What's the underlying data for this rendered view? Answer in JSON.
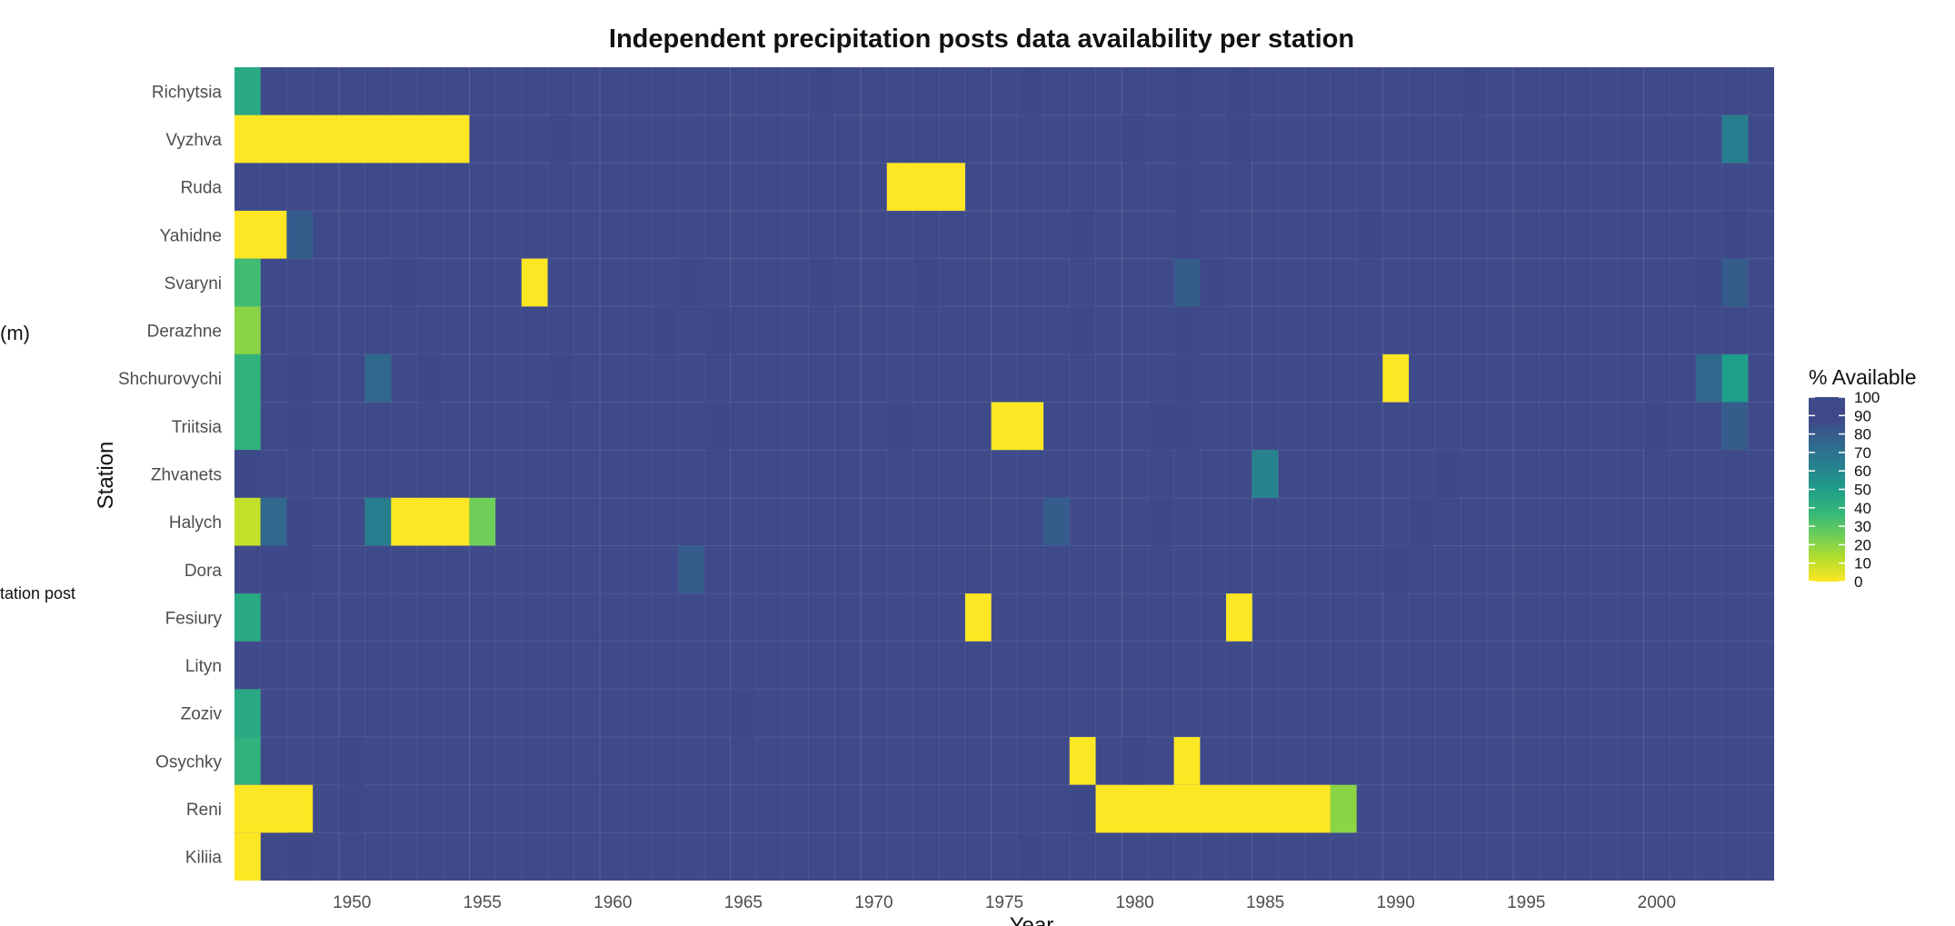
{
  "edge_text": {
    "left_fragment_1": "(m)",
    "left_fragment_2": "tation post"
  },
  "chart_data": {
    "type": "heatmap",
    "title": "Independent precipitation posts data availability per station",
    "xlabel": "Year",
    "ylabel": "Station",
    "x_range": [
      1946,
      2004
    ],
    "x_ticks": [
      1950,
      1955,
      1960,
      1965,
      1970,
      1975,
      1980,
      1985,
      1990,
      1995,
      2000
    ],
    "stations": [
      "Richytsia",
      "Vyzhva",
      "Ruda",
      "Yahidne",
      "Svaryni",
      "Derazhne",
      "Shchurovychi",
      "Triitsia",
      "Zhvanets",
      "Halych",
      "Dora",
      "Fesiury",
      "Lityn",
      "Zoziv",
      "Osychky",
      "Reni",
      "Kiliia"
    ],
    "default_value": 100,
    "legend": {
      "title": "% Available",
      "position": "right",
      "ticks": [
        100,
        90,
        80,
        70,
        60,
        50,
        40,
        30,
        20,
        10,
        0
      ],
      "colors": [
        "#fde725",
        "#b5de2b",
        "#6ece58",
        "#35b779",
        "#1f9e89",
        "#26828e",
        "#31688e",
        "#3e4989",
        "#3e4a89"
      ]
    },
    "grid": true,
    "cells": [
      {
        "station": "Richytsia",
        "from": 1946,
        "to": 1946,
        "value": 45
      },
      {
        "station": "Richytsia",
        "from": 1968,
        "to": 1968,
        "value": 90
      },
      {
        "station": "Richytsia",
        "from": 1976,
        "to": 1976,
        "value": 90
      },
      {
        "station": "Richytsia",
        "from": 1982,
        "to": 1982,
        "value": 90
      },
      {
        "station": "Richytsia",
        "from": 1984,
        "to": 1984,
        "value": 90
      },
      {
        "station": "Richytsia",
        "from": 1993,
        "to": 1993,
        "value": 90
      },
      {
        "station": "Vyzhva",
        "from": 1946,
        "to": 1954,
        "value": 0
      },
      {
        "station": "Vyzhva",
        "from": 1958,
        "to": 1958,
        "value": 88
      },
      {
        "station": "Vyzhva",
        "from": 1980,
        "to": 1980,
        "value": 90
      },
      {
        "station": "Vyzhva",
        "from": 1982,
        "to": 1982,
        "value": 92
      },
      {
        "station": "Vyzhva",
        "from": 1984,
        "to": 1984,
        "value": 90
      },
      {
        "station": "Vyzhva",
        "from": 2003,
        "to": 2003,
        "value": 65
      },
      {
        "station": "Ruda",
        "from": 1971,
        "to": 1973,
        "value": 0
      },
      {
        "station": "Ruda",
        "from": 1982,
        "to": 1982,
        "value": 92
      },
      {
        "station": "Yahidne",
        "from": 1946,
        "to": 1947,
        "value": 0
      },
      {
        "station": "Yahidne",
        "from": 1948,
        "to": 1948,
        "value": 80
      },
      {
        "station": "Yahidne",
        "from": 1978,
        "to": 1978,
        "value": 90
      },
      {
        "station": "Yahidne",
        "from": 1982,
        "to": 1982,
        "value": 92
      },
      {
        "station": "Yahidne",
        "from": 1989,
        "to": 1989,
        "value": 90
      },
      {
        "station": "Yahidne",
        "from": 2003,
        "to": 2003,
        "value": 88
      },
      {
        "station": "Svaryni",
        "from": 1946,
        "to": 1946,
        "value": 35
      },
      {
        "station": "Svaryni",
        "from": 1952,
        "to": 1952,
        "value": 92
      },
      {
        "station": "Svaryni",
        "from": 1957,
        "to": 1957,
        "value": 0
      },
      {
        "station": "Svaryni",
        "from": 1963,
        "to": 1963,
        "value": 90
      },
      {
        "station": "Svaryni",
        "from": 1968,
        "to": 1968,
        "value": 90
      },
      {
        "station": "Svaryni",
        "from": 1972,
        "to": 1972,
        "value": 90
      },
      {
        "station": "Svaryni",
        "from": 1982,
        "to": 1982,
        "value": 80
      },
      {
        "station": "Svaryni",
        "from": 1983,
        "to": 1983,
        "value": 90
      },
      {
        "station": "Svaryni",
        "from": 2002,
        "to": 2002,
        "value": 90
      },
      {
        "station": "Svaryni",
        "from": 2003,
        "to": 2003,
        "value": 80
      },
      {
        "station": "Derazhne",
        "from": 1946,
        "to": 1946,
        "value": 20
      },
      {
        "station": "Derazhne",
        "from": 1962,
        "to": 1962,
        "value": 90
      },
      {
        "station": "Derazhne",
        "from": 1964,
        "to": 1964,
        "value": 90
      },
      {
        "station": "Derazhne",
        "from": 1978,
        "to": 1978,
        "value": 90
      },
      {
        "station": "Derazhne",
        "from": 1982,
        "to": 1982,
        "value": 92
      },
      {
        "station": "Shchurovychi",
        "from": 1946,
        "to": 1946,
        "value": 40
      },
      {
        "station": "Shchurovychi",
        "from": 1948,
        "to": 1948,
        "value": 90
      },
      {
        "station": "Shchurovychi",
        "from": 1951,
        "to": 1951,
        "value": 75
      },
      {
        "station": "Shchurovychi",
        "from": 1953,
        "to": 1953,
        "value": 92
      },
      {
        "station": "Shchurovychi",
        "from": 1958,
        "to": 1958,
        "value": 90
      },
      {
        "station": "Shchurovychi",
        "from": 1982,
        "to": 1982,
        "value": 92
      },
      {
        "station": "Shchurovychi",
        "from": 1990,
        "to": 1990,
        "value": 0
      },
      {
        "station": "Shchurovychi",
        "from": 2002,
        "to": 2002,
        "value": 75
      },
      {
        "station": "Shchurovychi",
        "from": 2003,
        "to": 2003,
        "value": 50
      },
      {
        "station": "Triitsia",
        "from": 1946,
        "to": 1946,
        "value": 40
      },
      {
        "station": "Triitsia",
        "from": 1948,
        "to": 1948,
        "value": 90
      },
      {
        "station": "Triitsia",
        "from": 1964,
        "to": 1964,
        "value": 90
      },
      {
        "station": "Triitsia",
        "from": 1971,
        "to": 1971,
        "value": 90
      },
      {
        "station": "Triitsia",
        "from": 1975,
        "to": 1976,
        "value": 0
      },
      {
        "station": "Triitsia",
        "from": 1981,
        "to": 1982,
        "value": 90
      },
      {
        "station": "Triitsia",
        "from": 2000,
        "to": 2000,
        "value": 90
      },
      {
        "station": "Triitsia",
        "from": 2003,
        "to": 2003,
        "value": 80
      },
      {
        "station": "Zhvanets",
        "from": 1946,
        "to": 1946,
        "value": 88
      },
      {
        "station": "Zhvanets",
        "from": 1985,
        "to": 1985,
        "value": 62
      },
      {
        "station": "Zhvanets",
        "from": 1992,
        "to": 1992,
        "value": 90
      },
      {
        "station": "Halych",
        "from": 1946,
        "to": 1946,
        "value": 10
      },
      {
        "station": "Halych",
        "from": 1947,
        "to": 1947,
        "value": 75
      },
      {
        "station": "Halych",
        "from": 1948,
        "to": 1948,
        "value": 90
      },
      {
        "station": "Halych",
        "from": 1951,
        "to": 1951,
        "value": 65
      },
      {
        "station": "Halych",
        "from": 1952,
        "to": 1954,
        "value": 0
      },
      {
        "station": "Halych",
        "from": 1955,
        "to": 1955,
        "value": 25
      },
      {
        "station": "Halych",
        "from": 1977,
        "to": 1977,
        "value": 80
      },
      {
        "station": "Halych",
        "from": 1981,
        "to": 1981,
        "value": 88
      },
      {
        "station": "Halych",
        "from": 1991,
        "to": 1991,
        "value": 90
      },
      {
        "station": "Dora",
        "from": 1947,
        "to": 1948,
        "value": 92
      },
      {
        "station": "Dora",
        "from": 1963,
        "to": 1963,
        "value": 80
      },
      {
        "station": "Dora",
        "from": 1990,
        "to": 1990,
        "value": 90
      },
      {
        "station": "Fesiury",
        "from": 1946,
        "to": 1946,
        "value": 45
      },
      {
        "station": "Fesiury",
        "from": 1974,
        "to": 1974,
        "value": 0
      },
      {
        "station": "Fesiury",
        "from": 1984,
        "to": 1984,
        "value": 0
      },
      {
        "station": "Zoziv",
        "from": 1946,
        "to": 1946,
        "value": 45
      },
      {
        "station": "Zoziv",
        "from": 1965,
        "to": 1965,
        "value": 88
      },
      {
        "station": "Osychky",
        "from": 1946,
        "to": 1946,
        "value": 40
      },
      {
        "station": "Osychky",
        "from": 1950,
        "to": 1950,
        "value": 92
      },
      {
        "station": "Osychky",
        "from": 1978,
        "to": 1978,
        "value": 0
      },
      {
        "station": "Osychky",
        "from": 1980,
        "to": 1980,
        "value": 90
      },
      {
        "station": "Osychky",
        "from": 1982,
        "to": 1982,
        "value": 0
      },
      {
        "station": "Reni",
        "from": 1946,
        "to": 1948,
        "value": 0
      },
      {
        "station": "Reni",
        "from": 1950,
        "to": 1950,
        "value": 92
      },
      {
        "station": "Reni",
        "from": 1978,
        "to": 1978,
        "value": 90
      },
      {
        "station": "Reni",
        "from": 1979,
        "to": 1987,
        "value": 0
      },
      {
        "station": "Reni",
        "from": 1988,
        "to": 1988,
        "value": 20
      },
      {
        "station": "Kiliia",
        "from": 1946,
        "to": 1946,
        "value": 0
      },
      {
        "station": "Kiliia",
        "from": 1948,
        "to": 1948,
        "value": 90
      },
      {
        "station": "Kiliia",
        "from": 1976,
        "to": 1976,
        "value": 90
      }
    ]
  }
}
